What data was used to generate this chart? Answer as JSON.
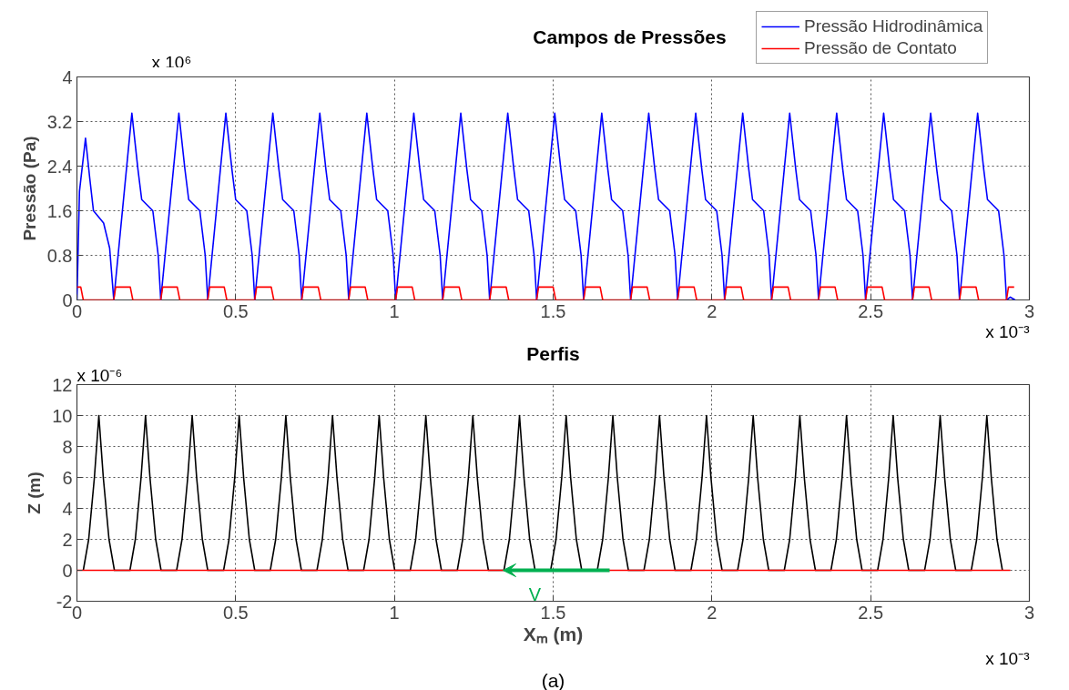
{
  "chart_data": [
    {
      "type": "line",
      "title": "Campos de Pressões",
      "ylabel": "Pressão (Pa)",
      "xlim": [
        0,
        3
      ],
      "ylim": [
        0,
        4
      ],
      "xticks": [
        0,
        0.5,
        1,
        1.5,
        2,
        2.5,
        3
      ],
      "yticks": [
        0,
        0.8,
        1.6,
        2.4,
        3.2,
        4
      ],
      "grid": true,
      "legend": "top right",
      "line_style": "solid",
      "annotations": [
        "x 10⁶",
        "x 10⁻³"
      ],
      "series": [
        {
          "name": "Pressão Hidrodinâmica",
          "color": "#0000ff",
          "x": [
            0,
            0.008,
            0.027,
            0.04,
            0.052,
            0.084,
            0.103,
            0.116,
            0.173,
            0.192,
            0.204,
            0.239,
            0.256,
            0.264,
            0.321,
            0.34,
            0.352,
            0.387,
            0.404,
            0.412,
            0.469,
            0.488,
            0.5,
            0.535,
            0.552,
            0.56,
            0.617,
            0.636,
            0.648,
            0.683,
            0.7,
            0.708,
            0.765,
            0.784,
            0.796,
            0.831,
            0.848,
            0.856,
            0.913,
            0.932,
            0.944,
            0.979,
            0.996,
            1.004,
            1.061,
            1.08,
            1.092,
            1.127,
            1.144,
            1.152,
            1.209,
            1.228,
            1.24,
            1.275,
            1.292,
            1.3,
            1.357,
            1.376,
            1.388,
            1.423,
            1.44,
            1.448,
            1.505,
            1.524,
            1.536,
            1.571,
            1.588,
            1.596,
            1.653,
            1.672,
            1.684,
            1.719,
            1.736,
            1.744,
            1.801,
            1.82,
            1.832,
            1.867,
            1.884,
            1.892,
            1.949,
            1.968,
            1.98,
            2.015,
            2.032,
            2.04,
            2.097,
            2.116,
            2.128,
            2.163,
            2.18,
            2.188,
            2.245,
            2.264,
            2.276,
            2.311,
            2.328,
            2.336,
            2.393,
            2.412,
            2.424,
            2.459,
            2.476,
            2.484,
            2.541,
            2.56,
            2.572,
            2.607,
            2.624,
            2.632,
            2.689,
            2.708,
            2.72,
            2.755,
            2.772,
            2.78,
            2.837,
            2.856,
            2.868,
            2.903,
            2.92,
            2.928,
            2.94,
            2.955
          ],
          "values": [
            0,
            1.95,
            2.9,
            2.2,
            1.6,
            1.38,
            0.93,
            0,
            3.35,
            2.35,
            1.8,
            1.6,
            0.8,
            0,
            3.35,
            2.35,
            1.8,
            1.6,
            0.8,
            0,
            3.35,
            2.35,
            1.8,
            1.6,
            0.8,
            0,
            3.35,
            2.35,
            1.8,
            1.6,
            0.8,
            0,
            3.35,
            2.35,
            1.8,
            1.6,
            0.8,
            0,
            3.35,
            2.35,
            1.8,
            1.6,
            0.8,
            0,
            3.35,
            2.35,
            1.8,
            1.6,
            0.8,
            0,
            3.35,
            2.35,
            1.8,
            1.6,
            0.8,
            0,
            3.35,
            2.35,
            1.8,
            1.6,
            0.8,
            0,
            3.35,
            2.35,
            1.8,
            1.6,
            0.8,
            0,
            3.35,
            2.35,
            1.8,
            1.6,
            0.8,
            0,
            3.35,
            2.35,
            1.8,
            1.6,
            0.8,
            0,
            3.35,
            2.35,
            1.8,
            1.6,
            0.8,
            0,
            3.35,
            2.35,
            1.8,
            1.6,
            0.8,
            0,
            3.35,
            2.35,
            1.8,
            1.6,
            0.8,
            0,
            3.35,
            2.35,
            1.8,
            1.6,
            0.8,
            0,
            3.35,
            2.35,
            1.8,
            1.6,
            0.8,
            0,
            3.35,
            2.35,
            1.8,
            1.6,
            0.8,
            0,
            3.35,
            2.35,
            1.8,
            1.6,
            0.8,
            0,
            0.05,
            0
          ]
        },
        {
          "name": "Pressão de Contato",
          "color": "#ff0000",
          "x": [
            0,
            0.012,
            0.02,
            0.116,
            0.122,
            0.168,
            0.176,
            0.264,
            0.27,
            0.316,
            0.324,
            0.412,
            0.418,
            0.464,
            0.472,
            0.56,
            0.566,
            0.612,
            0.62,
            0.708,
            0.714,
            0.76,
            0.768,
            0.856,
            0.862,
            0.908,
            0.916,
            1.004,
            1.01,
            1.056,
            1.064,
            1.152,
            1.158,
            1.204,
            1.212,
            1.3,
            1.306,
            1.352,
            1.36,
            1.448,
            1.454,
            1.5,
            1.508,
            1.596,
            1.602,
            1.648,
            1.656,
            1.744,
            1.75,
            1.796,
            1.804,
            1.892,
            1.898,
            1.944,
            1.952,
            2.04,
            2.046,
            2.092,
            2.1,
            2.188,
            2.194,
            2.24,
            2.248,
            2.336,
            2.342,
            2.388,
            2.396,
            2.484,
            2.49,
            2.536,
            2.544,
            2.632,
            2.638,
            2.684,
            2.692,
            2.78,
            2.786,
            2.832,
            2.84,
            2.928,
            2.934,
            2.952
          ],
          "values": [
            0.23,
            0.23,
            0,
            0,
            0.23,
            0.23,
            0,
            0,
            0.23,
            0.23,
            0,
            0,
            0.23,
            0.23,
            0,
            0,
            0.23,
            0.23,
            0,
            0,
            0.23,
            0.23,
            0,
            0,
            0.23,
            0.23,
            0,
            0,
            0.23,
            0.23,
            0,
            0,
            0.23,
            0.23,
            0,
            0,
            0.23,
            0.23,
            0,
            0,
            0.23,
            0.23,
            0,
            0,
            0.23,
            0.23,
            0,
            0,
            0.23,
            0.23,
            0,
            0,
            0.23,
            0.23,
            0,
            0,
            0.23,
            0.23,
            0,
            0,
            0.23,
            0.23,
            0,
            0,
            0.23,
            0.23,
            0,
            0,
            0.23,
            0.23,
            0,
            0,
            0.23,
            0.23,
            0,
            0,
            0.23,
            0.23,
            0,
            0,
            0.23,
            0.23
          ]
        }
      ]
    },
    {
      "type": "line",
      "title": "Perfis",
      "xlabel": "Xₘ (m)",
      "ylabel": "Z (m)",
      "xlim": [
        0,
        3
      ],
      "ylim": [
        -2,
        12
      ],
      "xticks": [
        0,
        0.5,
        1,
        1.5,
        2,
        2.5,
        3
      ],
      "yticks": [
        -2,
        0,
        2,
        4,
        6,
        8,
        10,
        12
      ],
      "grid": true,
      "line_style": "solid",
      "annotations": [
        "x 10⁻⁶",
        "x 10⁻³",
        "V",
        "(a)"
      ],
      "series": [
        {
          "color": "#000000",
          "x": [
            0.02,
            0.037,
            0.055,
            0.069,
            0.083,
            0.101,
            0.118,
            0.167,
            0.184,
            0.202,
            0.216,
            0.23,
            0.248,
            0.265,
            0.314,
            0.331,
            0.349,
            0.363,
            0.377,
            0.395,
            0.412,
            0.462,
            0.479,
            0.497,
            0.511,
            0.525,
            0.543,
            0.56,
            0.609,
            0.626,
            0.644,
            0.658,
            0.672,
            0.69,
            0.707,
            0.756,
            0.773,
            0.791,
            0.805,
            0.819,
            0.837,
            0.854,
            0.903,
            0.92,
            0.938,
            0.952,
            0.966,
            0.984,
            1.001,
            1.05,
            1.067,
            1.085,
            1.099,
            1.113,
            1.131,
            1.148,
            1.198,
            1.215,
            1.233,
            1.247,
            1.261,
            1.279,
            1.296,
            1.345,
            1.362,
            1.38,
            1.394,
            1.408,
            1.426,
            1.443,
            1.492,
            1.509,
            1.527,
            1.541,
            1.555,
            1.573,
            1.59,
            1.639,
            1.656,
            1.674,
            1.688,
            1.702,
            1.72,
            1.737,
            1.786,
            1.803,
            1.821,
            1.835,
            1.849,
            1.867,
            1.884,
            1.934,
            1.951,
            1.969,
            1.983,
            1.997,
            2.015,
            2.032,
            2.081,
            2.098,
            2.116,
            2.13,
            2.144,
            2.162,
            2.179,
            2.228,
            2.245,
            2.263,
            2.277,
            2.291,
            2.309,
            2.326,
            2.375,
            2.392,
            2.41,
            2.424,
            2.438,
            2.456,
            2.473,
            2.522,
            2.539,
            2.557,
            2.571,
            2.585,
            2.603,
            2.62,
            2.67,
            2.687,
            2.705,
            2.719,
            2.733,
            2.751,
            2.768,
            2.817,
            2.834,
            2.852,
            2.866,
            2.88,
            2.898,
            2.915
          ],
          "values": [
            0,
            2,
            6,
            10,
            6,
            2,
            0,
            0,
            2,
            6,
            10,
            6,
            2,
            0,
            0,
            2,
            6,
            10,
            6,
            2,
            0,
            0,
            2,
            6,
            10,
            6,
            2,
            0,
            0,
            2,
            6,
            10,
            6,
            2,
            0,
            0,
            2,
            6,
            10,
            6,
            2,
            0,
            0,
            2,
            6,
            10,
            6,
            2,
            0,
            0,
            2,
            6,
            10,
            6,
            2,
            0,
            0,
            2,
            6,
            10,
            6,
            2,
            0,
            0,
            2,
            6,
            10,
            6,
            2,
            0,
            0,
            2,
            6,
            10,
            6,
            2,
            0,
            0,
            2,
            6,
            10,
            6,
            2,
            0,
            0,
            2,
            6,
            10,
            6,
            2,
            0,
            0,
            2,
            6,
            10,
            6,
            2,
            0,
            0,
            2,
            6,
            10,
            6,
            2,
            0,
            0,
            2,
            6,
            10,
            6,
            2,
            0,
            0,
            2,
            6,
            10,
            6,
            2,
            0,
            0,
            2,
            6,
            10,
            6,
            2,
            0,
            0,
            2,
            6,
            10,
            6,
            2,
            0,
            0,
            2,
            6,
            10,
            6,
            2,
            0
          ]
        },
        {
          "color": "#ff0000",
          "x": [
            0,
            2.94
          ],
          "values": [
            0,
            0
          ]
        }
      ]
    }
  ]
}
